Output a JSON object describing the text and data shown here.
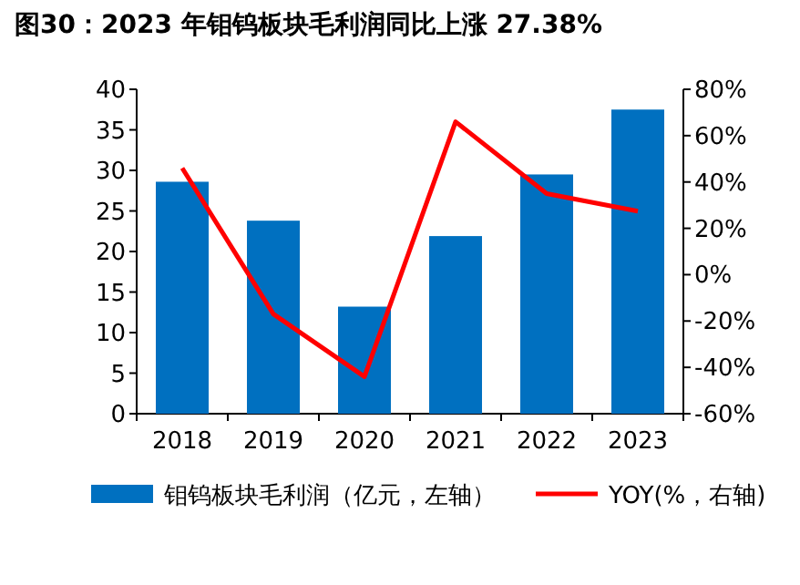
{
  "chart_data": {
    "type": "bar",
    "title": "图30：2023 年钼钨板块毛利润同比上涨 27.38%",
    "categories": [
      "2018",
      "2019",
      "2020",
      "2021",
      "2022",
      "2023"
    ],
    "series": [
      {
        "name": "钼钨板块毛利润（亿元，左轴）",
        "color": "#0070c0",
        "values": [
          28.6,
          23.8,
          13.2,
          21.9,
          29.5,
          37.5
        ]
      },
      {
        "name": "YOY(%，右轴)",
        "type": "line",
        "axis": "y2",
        "color": "#ff0000",
        "values": [
          46,
          -17,
          -44,
          66,
          35,
          27.38
        ]
      }
    ],
    "ylim": [
      0,
      40
    ],
    "yticks": [
      0,
      5,
      10,
      15,
      20,
      25,
      30,
      35,
      40
    ],
    "y2lim": [
      -60,
      80
    ],
    "y2ticks": [
      {
        "value": -60,
        "label": "-60%"
      },
      {
        "value": -40,
        "label": "-40%"
      },
      {
        "value": -20,
        "label": "-20%"
      },
      {
        "value": 0,
        "label": "0%"
      },
      {
        "value": 20,
        "label": "20%"
      },
      {
        "value": 40,
        "label": "40%"
      },
      {
        "value": 60,
        "label": "60%"
      },
      {
        "value": 80,
        "label": "80%"
      }
    ],
    "legend": "bottom"
  }
}
